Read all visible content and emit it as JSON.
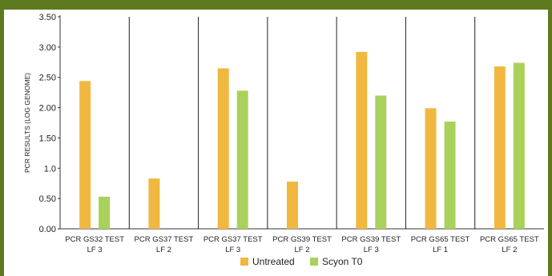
{
  "chart_data": {
    "type": "bar",
    "title": "",
    "xlabel": "",
    "ylabel": "PCR RESULTS (LOG GENOME)",
    "ylim": [
      0,
      3.5
    ],
    "yticks": [
      "0.00",
      "0.50",
      "1.0",
      "1.50",
      "2.00",
      "2.50",
      "3.00",
      "3.50"
    ],
    "grid": false,
    "legend_position": "bottom",
    "categories": [
      [
        "PCR GS32 TEST",
        "LF 3"
      ],
      [
        "PCR GS37 TEST",
        "LF 2"
      ],
      [
        "PCR GS37 TEST",
        "LF 3"
      ],
      [
        "PCR GS39 TEST",
        "LF 2"
      ],
      [
        "PCR GS39 TEST",
        "LF 3"
      ],
      [
        "PCR GS65 TEST",
        "LF 1"
      ],
      [
        "PCR GS65 TEST",
        "LF 2"
      ]
    ],
    "series": [
      {
        "name": "Untreated",
        "color": "#f0b840",
        "values": [
          2.44,
          0.83,
          2.65,
          0.78,
          2.92,
          1.99,
          2.68
        ]
      },
      {
        "name": "Scyon T0",
        "color": "#a9d15b",
        "values": [
          0.53,
          0,
          2.28,
          0,
          2.2,
          1.77,
          2.74
        ]
      }
    ]
  },
  "frame": {
    "accent_color": "#5d7a1f"
  }
}
